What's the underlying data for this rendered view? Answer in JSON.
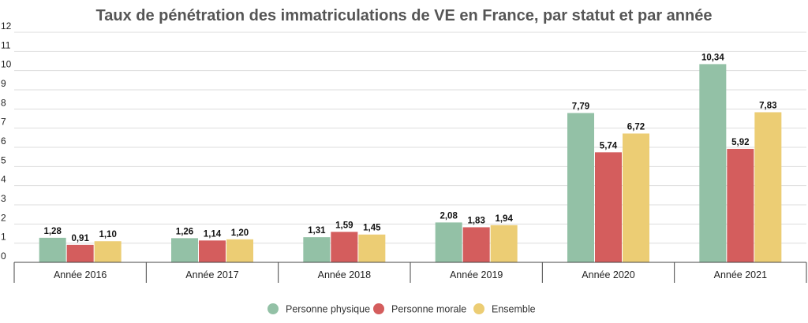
{
  "chart_data": {
    "type": "bar",
    "title": "Taux de pénétration des immatriculations de VE en France, par statut et par année",
    "categories": [
      "Année 2016",
      "Année 2017",
      "Année 2018",
      "Année 2019",
      "Année 2020",
      "Année 2021"
    ],
    "series": [
      {
        "name": "Personne physique",
        "color": "#93c1a6",
        "values": [
          1.28,
          1.26,
          1.31,
          2.08,
          7.79,
          10.34
        ],
        "labels": [
          "1,28",
          "1,26",
          "1,31",
          "2,08",
          "7,79",
          "10,34"
        ]
      },
      {
        "name": "Personne morale",
        "color": "#d45d5d",
        "values": [
          0.91,
          1.14,
          1.59,
          1.83,
          5.74,
          5.92
        ],
        "labels": [
          "0,91",
          "1,14",
          "1,59",
          "1,83",
          "5,74",
          "5,92"
        ]
      },
      {
        "name": "Ensemble",
        "color": "#eccd74",
        "values": [
          1.1,
          1.2,
          1.45,
          1.94,
          6.72,
          7.83
        ],
        "labels": [
          "1,10",
          "1,20",
          "1,45",
          "1,94",
          "6,72",
          "7,83"
        ]
      }
    ],
    "ylim": [
      0,
      12
    ],
    "yticks": [
      "0",
      "1",
      "2",
      "3",
      "4",
      "5",
      "6",
      "7",
      "8",
      "9",
      "10",
      "11",
      "12"
    ],
    "grid": true,
    "legend": "bottom-center",
    "xlabel": "",
    "ylabel": ""
  }
}
